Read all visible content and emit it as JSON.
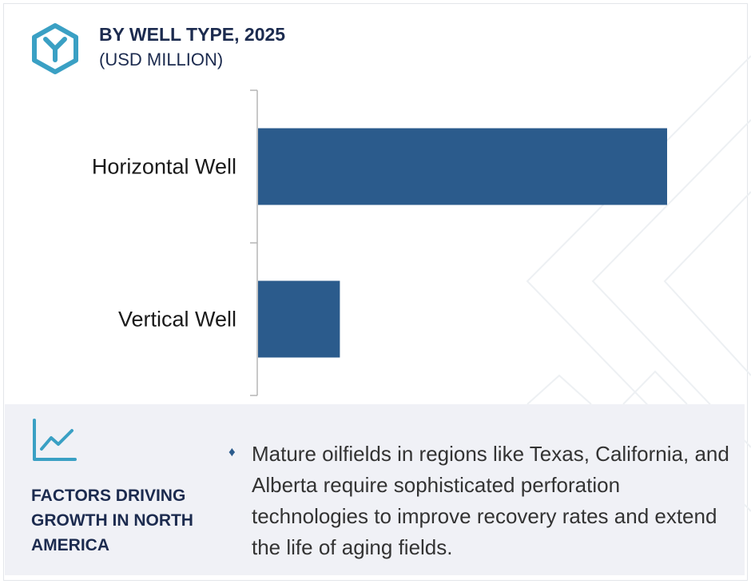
{
  "header": {
    "title": "BY WELL TYPE, 2025",
    "subtitle": "(USD MILLION)",
    "logo_icon": "hexagon-y-logo-icon"
  },
  "chart_data": {
    "type": "bar",
    "orientation": "horizontal",
    "categories": [
      "Horizontal Well",
      "Vertical Well"
    ],
    "values": [
      100,
      20
    ],
    "value_note": "",
    "xlabel": "",
    "ylabel": "",
    "xlim": [
      0,
      100
    ],
    "grid": false,
    "legend": "none",
    "bar_color": "#2b5b8c"
  },
  "factors": {
    "icon": "line-chart-icon",
    "heading": "FACTORS DRIVING GROWTH IN NORTH AMERICA",
    "bullet_glyph": "♦",
    "text": "Mature oilfields in regions like Texas, California, and Alberta require sophisticated perforation technologies to improve recovery rates and extend the life of aging fields."
  },
  "colors": {
    "accent": "#3aa0c4",
    "navy": "#1c2b4f",
    "bar": "#2b5b8c",
    "panel": "#f0f1f6"
  }
}
